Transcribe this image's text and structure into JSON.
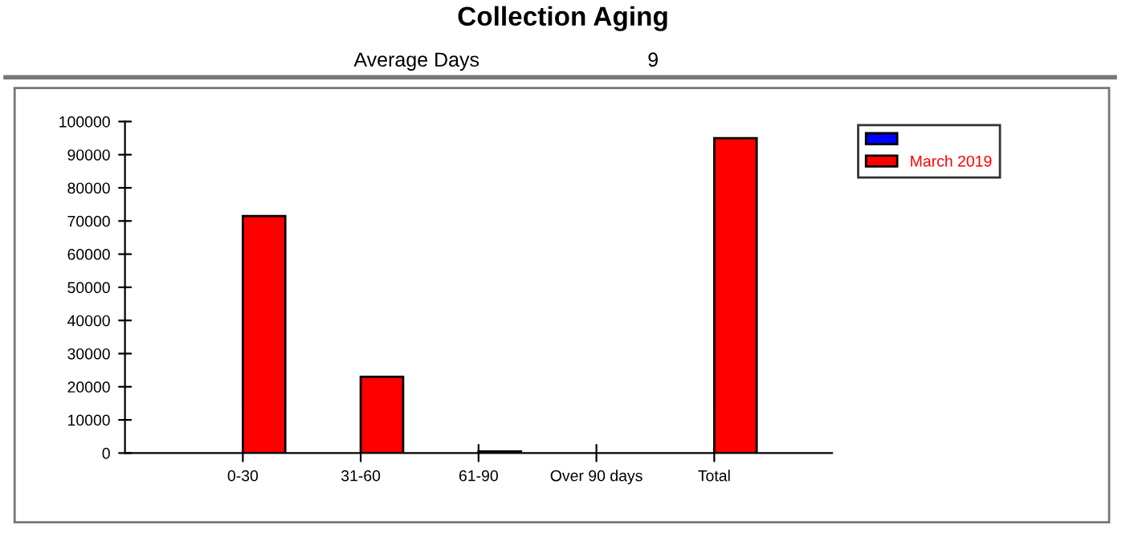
{
  "chart_data": {
    "type": "bar",
    "title": "Collection Aging",
    "annotations": [
      "Average Days",
      "9"
    ],
    "categories": [
      "0-30",
      "31-60",
      "61-90",
      "Over 90 days",
      "Total"
    ],
    "series": [
      {
        "color": "#0000ff",
        "values": [
          0,
          0,
          0,
          0,
          0
        ]
      },
      {
        "name": "March 2019",
        "color": "#ff0000",
        "values": [
          71500,
          23000,
          500,
          0,
          95000
        ]
      }
    ],
    "ylim": [
      0,
      100000
    ],
    "yticks": [
      0,
      10000,
      20000,
      30000,
      40000,
      50000,
      60000,
      70000,
      80000,
      90000,
      100000
    ],
    "grid": false,
    "legend": "top right"
  }
}
